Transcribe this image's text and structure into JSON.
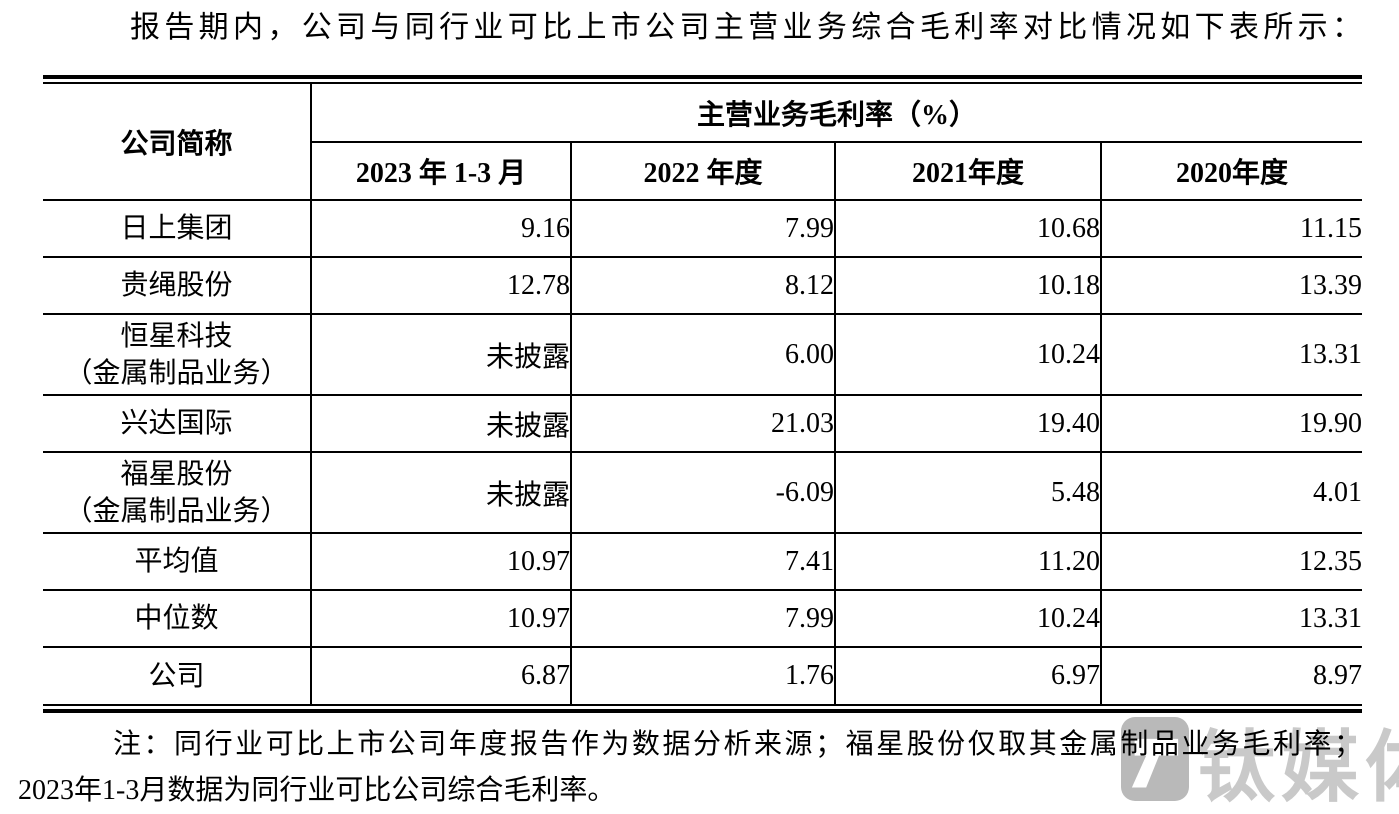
{
  "document": {
    "intro": "报告期内，公司与同行业可比上市公司主营业务综合毛利率对比情况如下表所示：",
    "note_line1": "注：同行业可比上市公司年度报告作为数据分析来源；福星股份仅取其金属制品业务毛利率；",
    "note_line2": "2023年1-3月数据为同行业可比公司综合毛利率。"
  },
  "table": {
    "corner_header": "公司简称",
    "group_header": "主营业务毛利率（%）",
    "period_headers": [
      "2023 年 1-3 月",
      "2022 年度",
      "2021年度",
      "2020年度"
    ],
    "rows": [
      {
        "name": "日上集团",
        "values": [
          "9.16",
          "7.99",
          "10.68",
          "11.15"
        ]
      },
      {
        "name": "贵绳股份",
        "values": [
          "12.78",
          "8.12",
          "10.18",
          "13.39"
        ]
      },
      {
        "name": "恒星科技",
        "name_line2": "（金属制品业务）",
        "values": [
          "未披露",
          "6.00",
          "10.24",
          "13.31"
        ]
      },
      {
        "name": "兴达国际",
        "values": [
          "未披露",
          "21.03",
          "19.40",
          "19.90"
        ]
      },
      {
        "name": "福星股份",
        "name_line2": "（金属制品业务）",
        "values": [
          "未披露",
          "-6.09",
          "5.48",
          "4.01"
        ]
      },
      {
        "name": "平均值",
        "values": [
          "10.97",
          "7.41",
          "11.20",
          "12.35"
        ]
      },
      {
        "name": "中位数",
        "values": [
          "10.97",
          "7.99",
          "10.24",
          "13.31"
        ]
      },
      {
        "name": "公司",
        "values": [
          "6.87",
          "1.76",
          "6.97",
          "8.97"
        ]
      }
    ]
  },
  "watermark": {
    "text": "钛媒体",
    "logo_icon": "tmtpost-logo-icon",
    "text_color": "#c9c9c9",
    "logo_color": "#b9b9b9"
  },
  "colors": {
    "background": "#ffffff",
    "text": "#000000",
    "border": "#000000"
  }
}
